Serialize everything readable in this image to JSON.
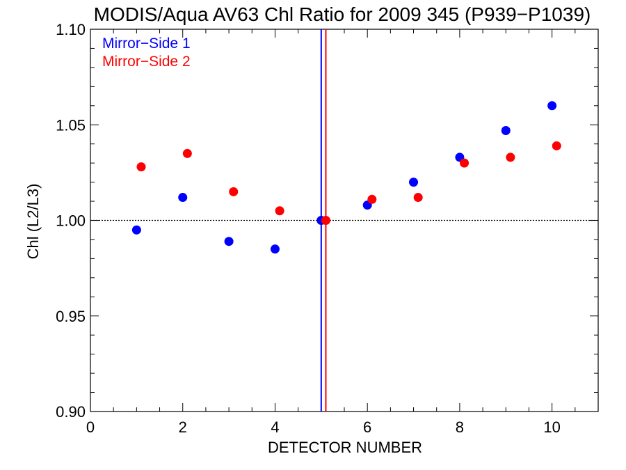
{
  "chart_data": {
    "type": "scatter",
    "title": "MODIS/Aqua AV63 Chl Ratio for 2009 345 (P939−P1039)",
    "xlabel": "DETECTOR NUMBER",
    "ylabel": "Chl (L2/L3)",
    "xlim": [
      0,
      11
    ],
    "ylim": [
      0.9,
      1.1
    ],
    "x_ticks": [
      "0",
      "2",
      "4",
      "6",
      "8",
      "10"
    ],
    "y_ticks": [
      "0.90",
      "0.95",
      "1.00",
      "1.05",
      "1.10"
    ],
    "grid": false,
    "legend_position": "top-left",
    "reference_line": {
      "y": 1.0,
      "style": "dotted"
    },
    "vertical_lines": [
      {
        "x": 5.0,
        "color": "#0000ff"
      },
      {
        "x": 5.1,
        "color": "#ff0000"
      }
    ],
    "series": [
      {
        "name": "Mirror−Side 1",
        "color": "#0000ff",
        "x": [
          1,
          2,
          3,
          4,
          5,
          6,
          7,
          8,
          9,
          10
        ],
        "y": [
          0.995,
          1.012,
          0.989,
          0.985,
          1.0,
          1.008,
          1.02,
          1.033,
          1.047,
          1.06
        ]
      },
      {
        "name": "Mirror−Side 2",
        "color": "#ff0000",
        "x": [
          1.1,
          2.1,
          3.1,
          4.1,
          5.1,
          6.1,
          7.1,
          8.1,
          9.1,
          10.1
        ],
        "y": [
          1.028,
          1.035,
          1.015,
          1.005,
          1.0,
          1.011,
          1.012,
          1.03,
          1.033,
          1.039
        ]
      }
    ]
  }
}
